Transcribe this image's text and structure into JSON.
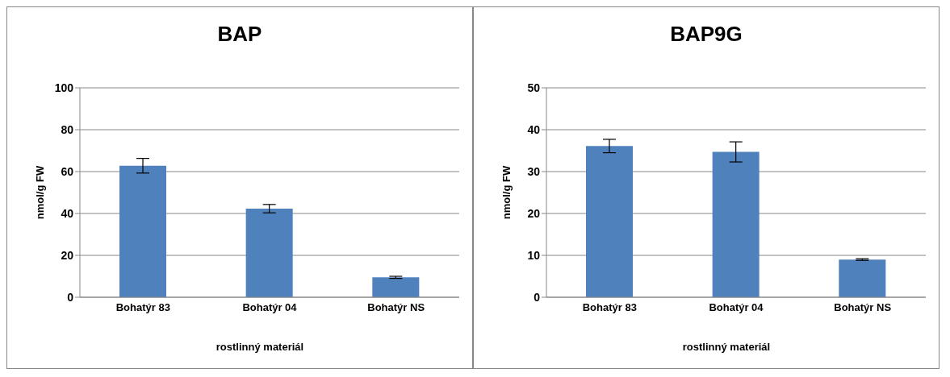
{
  "chart_data": [
    {
      "type": "bar",
      "title": "BAP",
      "xlabel": "rostlinný materiál",
      "ylabel": "nmol/g FW",
      "categories": [
        "Bohatýr 83",
        "Bohatýr 04",
        "Bohatýr NS"
      ],
      "values": [
        62.8,
        42.3,
        9.5
      ],
      "errors": [
        3.5,
        2,
        0.5
      ],
      "color": "#4f81bd",
      "ylim": [
        0,
        100
      ],
      "yticks": [
        0,
        20,
        40,
        60,
        80,
        100
      ],
      "grid": "y"
    },
    {
      "type": "bar",
      "title": "BAP9G",
      "xlabel": "rostlinný materiál",
      "ylabel": "nmol/g FW",
      "categories": [
        "Bohatýr 83",
        "Bohatýr 04",
        "Bohatýr NS"
      ],
      "values": [
        36.1,
        34.7,
        9.0
      ],
      "errors": [
        1.6,
        2.4,
        0.2
      ],
      "color": "#4f81bd",
      "ylim": [
        0,
        50
      ],
      "yticks": [
        0,
        10,
        20,
        30,
        40,
        50
      ],
      "grid": "y"
    }
  ]
}
